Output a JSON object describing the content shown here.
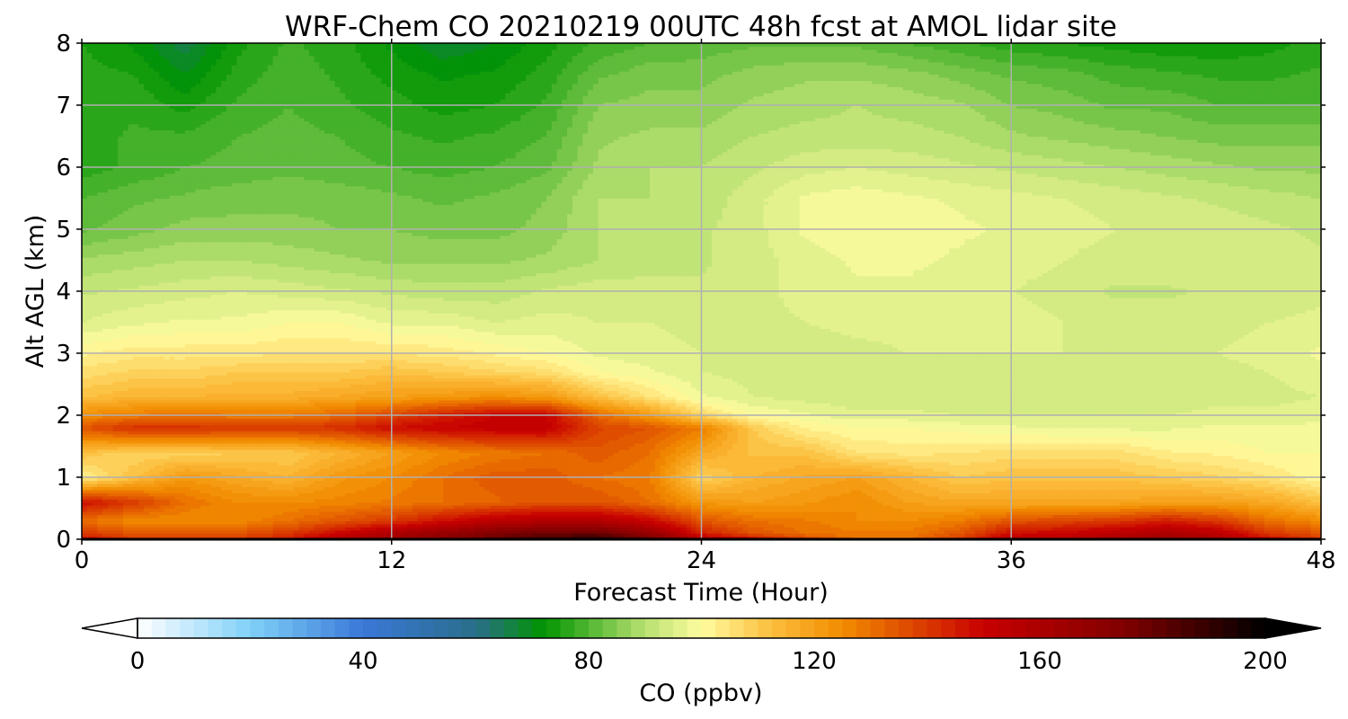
{
  "chart_data": {
    "type": "heatmap",
    "title": "WRF-Chem CO  20210219 00UTC 48h fcst at AMOL lidar site",
    "xlabel": "Forecast Time (Hour)",
    "ylabel": "Alt AGL (km)",
    "xlim": [
      0,
      48
    ],
    "ylim": [
      0,
      8
    ],
    "x_ticks": [
      0,
      12,
      24,
      36,
      48
    ],
    "x_tick_labels": [
      "0",
      "12",
      "24",
      "36",
      "48"
    ],
    "y_ticks": [
      0,
      1,
      2,
      3,
      4,
      5,
      6,
      7,
      8
    ],
    "y_tick_labels": [
      "0",
      "1",
      "2",
      "3",
      "4",
      "5",
      "6",
      "7",
      "8"
    ],
    "grid": true,
    "colorbar": {
      "label": "CO  (ppbv)",
      "vmin": 0,
      "vmax": 200,
      "ticks": [
        0,
        40,
        80,
        120,
        160,
        200
      ],
      "tick_labels": [
        "0",
        "40",
        "80",
        "120",
        "160",
        "200"
      ],
      "extend": "both",
      "min_extend_color": "#ffffff",
      "max_extend_color": "#000000",
      "color_stops": [
        {
          "v": 0,
          "c": "#ffffff"
        },
        {
          "v": 20,
          "c": "#80d0f8"
        },
        {
          "v": 40,
          "c": "#3a78d8"
        },
        {
          "v": 60,
          "c": "#2a6e8a"
        },
        {
          "v": 72,
          "c": "#009400"
        },
        {
          "v": 90,
          "c": "#b8e070"
        },
        {
          "v": 100,
          "c": "#fffca0"
        },
        {
          "v": 112,
          "c": "#fcc040"
        },
        {
          "v": 125,
          "c": "#f28c00"
        },
        {
          "v": 150,
          "c": "#c80000"
        },
        {
          "v": 175,
          "c": "#800000"
        },
        {
          "v": 200,
          "c": "#000000"
        }
      ]
    },
    "field": {
      "x": [
        0,
        2,
        4,
        6,
        8,
        10,
        12,
        14,
        16,
        18,
        20,
        22,
        24,
        26,
        28,
        30,
        32,
        34,
        36,
        38,
        40,
        42,
        44,
        46,
        48
      ],
      "y": [
        0,
        0.1,
        0.3,
        0.6,
        1.0,
        1.4,
        1.8,
        2.0,
        2.3,
        2.7,
        3.0,
        3.5,
        4.0,
        4.5,
        5.0,
        5.5,
        6.0,
        6.5,
        7.0,
        7.5,
        8.0
      ],
      "z": [
        [
          150,
          140,
          140,
          140,
          145,
          158,
          165,
          172,
          180,
          188,
          192,
          180,
          160,
          150,
          140,
          130,
          130,
          140,
          155,
          155,
          160,
          165,
          160,
          150,
          140
        ],
        [
          140,
          135,
          135,
          135,
          140,
          150,
          160,
          168,
          175,
          180,
          180,
          168,
          145,
          135,
          130,
          128,
          128,
          135,
          148,
          150,
          155,
          160,
          155,
          140,
          135
        ],
        [
          130,
          125,
          125,
          125,
          130,
          135,
          140,
          148,
          155,
          158,
          158,
          150,
          135,
          130,
          128,
          125,
          125,
          128,
          135,
          138,
          140,
          145,
          140,
          130,
          125
        ],
        [
          148,
          140,
          130,
          125,
          125,
          126,
          128,
          130,
          132,
          135,
          135,
          130,
          122,
          120,
          122,
          125,
          120,
          118,
          118,
          118,
          118,
          120,
          120,
          118,
          112
        ],
        [
          102,
          112,
          122,
          118,
          115,
          122,
          125,
          130,
          134,
          134,
          130,
          128,
          108,
          115,
          118,
          120,
          115,
          110,
          112,
          112,
          112,
          110,
          108,
          105,
          100
        ],
        [
          112,
          108,
          108,
          110,
          110,
          115,
          120,
          125,
          128,
          130,
          134,
          130,
          118,
          112,
          112,
          105,
          104,
          105,
          106,
          106,
          106,
          103,
          102,
          100,
          100
        ],
        [
          135,
          142,
          142,
          140,
          140,
          142,
          148,
          150,
          152,
          152,
          138,
          135,
          128,
          110,
          102,
          100,
          100,
          99,
          98,
          97,
          97,
          97,
          98,
          98,
          98
        ],
        [
          125,
          128,
          130,
          128,
          128,
          132,
          138,
          145,
          150,
          150,
          132,
          122,
          108,
          100,
          98,
          96,
          96,
          95,
          95,
          95,
          95,
          95,
          96,
          96,
          97
        ],
        [
          112,
          115,
          115,
          116,
          116,
          118,
          120,
          122,
          124,
          122,
          112,
          105,
          98,
          95,
          94,
          93,
          93,
          93,
          93,
          93,
          93,
          93,
          94,
          94,
          95
        ],
        [
          106,
          108,
          108,
          110,
          110,
          110,
          112,
          110,
          108,
          106,
          100,
          98,
          95,
          94,
          93,
          93,
          93,
          94,
          94,
          94,
          93,
          93,
          94,
          95,
          97
        ],
        [
          102,
          104,
          104,
          104,
          105,
          105,
          105,
          104,
          102,
          100,
          97,
          96,
          95,
          94,
          93,
          94,
          95,
          95,
          95,
          95,
          94,
          94,
          95,
          96,
          98
        ],
        [
          95,
          97,
          98,
          98,
          100,
          100,
          97,
          97,
          95,
          96,
          95,
          95,
          94,
          94,
          95,
          96,
          96,
          96,
          96,
          95,
          94,
          94,
          94,
          95,
          96
        ],
        [
          92,
          93,
          94,
          95,
          94,
          93,
          92,
          91,
          91,
          93,
          94,
          94,
          93,
          94,
          96,
          97,
          97,
          96,
          95,
          94,
          92,
          92,
          93,
          93,
          94
        ],
        [
          88,
          89,
          90,
          90,
          89,
          88,
          87,
          87,
          87,
          88,
          90,
          91,
          92,
          94,
          96,
          98,
          98,
          97,
          96,
          95,
          94,
          95,
          94,
          93,
          93
        ],
        [
          82,
          84,
          86,
          86,
          86,
          85,
          85,
          84,
          84,
          86,
          90,
          92,
          92,
          94,
          98,
          100,
          99,
          98,
          97,
          96,
          95,
          95,
          94,
          93,
          92
        ],
        [
          80,
          82,
          83,
          84,
          84,
          84,
          83,
          82,
          83,
          85,
          90,
          90,
          91,
          94,
          98,
          99,
          98,
          97,
          96,
          95,
          94,
          93,
          92,
          91,
          90
        ],
        [
          76,
          78,
          80,
          81,
          82,
          81,
          80,
          79,
          80,
          82,
          88,
          90,
          90,
          92,
          94,
          95,
          94,
          93,
          92,
          91,
          90,
          89,
          88,
          87,
          87
        ],
        [
          76,
          78,
          78,
          80,
          81,
          80,
          78,
          77,
          78,
          80,
          87,
          88,
          88,
          90,
          91,
          91,
          91,
          90,
          88,
          87,
          86,
          85,
          84,
          84,
          84
        ],
        [
          76,
          77,
          74,
          78,
          80,
          78,
          76,
          74,
          75,
          78,
          85,
          86,
          86,
          88,
          89,
          90,
          89,
          88,
          85,
          84,
          82,
          82,
          80,
          80,
          80
        ],
        [
          76,
          75,
          70,
          76,
          79,
          77,
          74,
          72,
          73,
          76,
          82,
          84,
          84,
          86,
          87,
          87,
          86,
          84,
          82,
          81,
          79,
          78,
          77,
          77,
          78
        ],
        [
          75,
          72,
          66,
          74,
          78,
          76,
          72,
          68,
          70,
          74,
          78,
          80,
          81,
          82,
          82,
          82,
          80,
          78,
          76,
          75,
          74,
          73,
          73,
          74,
          76
        ]
      ]
    }
  }
}
